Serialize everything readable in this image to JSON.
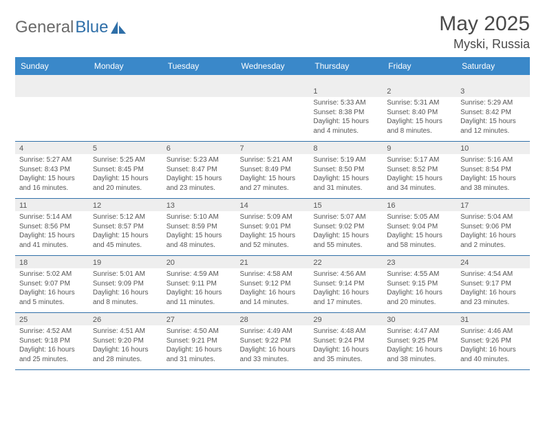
{
  "brand": {
    "part1": "General",
    "part2": "Blue"
  },
  "title": "May 2025",
  "location": "Myski, Russia",
  "colors": {
    "header_bg": "#3a88c9",
    "header_text": "#ffffff",
    "row_shade": "#eeeeee",
    "divider": "#2f6fa8",
    "body_text": "#555555"
  },
  "day_names": [
    "Sunday",
    "Monday",
    "Tuesday",
    "Wednesday",
    "Thursday",
    "Friday",
    "Saturday"
  ],
  "weeks": [
    [
      null,
      null,
      null,
      null,
      {
        "n": "1",
        "lines": [
          "Sunrise: 5:33 AM",
          "Sunset: 8:38 PM",
          "Daylight: 15 hours",
          "and 4 minutes."
        ]
      },
      {
        "n": "2",
        "lines": [
          "Sunrise: 5:31 AM",
          "Sunset: 8:40 PM",
          "Daylight: 15 hours",
          "and 8 minutes."
        ]
      },
      {
        "n": "3",
        "lines": [
          "Sunrise: 5:29 AM",
          "Sunset: 8:42 PM",
          "Daylight: 15 hours",
          "and 12 minutes."
        ]
      }
    ],
    [
      {
        "n": "4",
        "lines": [
          "Sunrise: 5:27 AM",
          "Sunset: 8:43 PM",
          "Daylight: 15 hours",
          "and 16 minutes."
        ]
      },
      {
        "n": "5",
        "lines": [
          "Sunrise: 5:25 AM",
          "Sunset: 8:45 PM",
          "Daylight: 15 hours",
          "and 20 minutes."
        ]
      },
      {
        "n": "6",
        "lines": [
          "Sunrise: 5:23 AM",
          "Sunset: 8:47 PM",
          "Daylight: 15 hours",
          "and 23 minutes."
        ]
      },
      {
        "n": "7",
        "lines": [
          "Sunrise: 5:21 AM",
          "Sunset: 8:49 PM",
          "Daylight: 15 hours",
          "and 27 minutes."
        ]
      },
      {
        "n": "8",
        "lines": [
          "Sunrise: 5:19 AM",
          "Sunset: 8:50 PM",
          "Daylight: 15 hours",
          "and 31 minutes."
        ]
      },
      {
        "n": "9",
        "lines": [
          "Sunrise: 5:17 AM",
          "Sunset: 8:52 PM",
          "Daylight: 15 hours",
          "and 34 minutes."
        ]
      },
      {
        "n": "10",
        "lines": [
          "Sunrise: 5:16 AM",
          "Sunset: 8:54 PM",
          "Daylight: 15 hours",
          "and 38 minutes."
        ]
      }
    ],
    [
      {
        "n": "11",
        "lines": [
          "Sunrise: 5:14 AM",
          "Sunset: 8:56 PM",
          "Daylight: 15 hours",
          "and 41 minutes."
        ]
      },
      {
        "n": "12",
        "lines": [
          "Sunrise: 5:12 AM",
          "Sunset: 8:57 PM",
          "Daylight: 15 hours",
          "and 45 minutes."
        ]
      },
      {
        "n": "13",
        "lines": [
          "Sunrise: 5:10 AM",
          "Sunset: 8:59 PM",
          "Daylight: 15 hours",
          "and 48 minutes."
        ]
      },
      {
        "n": "14",
        "lines": [
          "Sunrise: 5:09 AM",
          "Sunset: 9:01 PM",
          "Daylight: 15 hours",
          "and 52 minutes."
        ]
      },
      {
        "n": "15",
        "lines": [
          "Sunrise: 5:07 AM",
          "Sunset: 9:02 PM",
          "Daylight: 15 hours",
          "and 55 minutes."
        ]
      },
      {
        "n": "16",
        "lines": [
          "Sunrise: 5:05 AM",
          "Sunset: 9:04 PM",
          "Daylight: 15 hours",
          "and 58 minutes."
        ]
      },
      {
        "n": "17",
        "lines": [
          "Sunrise: 5:04 AM",
          "Sunset: 9:06 PM",
          "Daylight: 16 hours",
          "and 2 minutes."
        ]
      }
    ],
    [
      {
        "n": "18",
        "lines": [
          "Sunrise: 5:02 AM",
          "Sunset: 9:07 PM",
          "Daylight: 16 hours",
          "and 5 minutes."
        ]
      },
      {
        "n": "19",
        "lines": [
          "Sunrise: 5:01 AM",
          "Sunset: 9:09 PM",
          "Daylight: 16 hours",
          "and 8 minutes."
        ]
      },
      {
        "n": "20",
        "lines": [
          "Sunrise: 4:59 AM",
          "Sunset: 9:11 PM",
          "Daylight: 16 hours",
          "and 11 minutes."
        ]
      },
      {
        "n": "21",
        "lines": [
          "Sunrise: 4:58 AM",
          "Sunset: 9:12 PM",
          "Daylight: 16 hours",
          "and 14 minutes."
        ]
      },
      {
        "n": "22",
        "lines": [
          "Sunrise: 4:56 AM",
          "Sunset: 9:14 PM",
          "Daylight: 16 hours",
          "and 17 minutes."
        ]
      },
      {
        "n": "23",
        "lines": [
          "Sunrise: 4:55 AM",
          "Sunset: 9:15 PM",
          "Daylight: 16 hours",
          "and 20 minutes."
        ]
      },
      {
        "n": "24",
        "lines": [
          "Sunrise: 4:54 AM",
          "Sunset: 9:17 PM",
          "Daylight: 16 hours",
          "and 23 minutes."
        ]
      }
    ],
    [
      {
        "n": "25",
        "lines": [
          "Sunrise: 4:52 AM",
          "Sunset: 9:18 PM",
          "Daylight: 16 hours",
          "and 25 minutes."
        ]
      },
      {
        "n": "26",
        "lines": [
          "Sunrise: 4:51 AM",
          "Sunset: 9:20 PM",
          "Daylight: 16 hours",
          "and 28 minutes."
        ]
      },
      {
        "n": "27",
        "lines": [
          "Sunrise: 4:50 AM",
          "Sunset: 9:21 PM",
          "Daylight: 16 hours",
          "and 31 minutes."
        ]
      },
      {
        "n": "28",
        "lines": [
          "Sunrise: 4:49 AM",
          "Sunset: 9:22 PM",
          "Daylight: 16 hours",
          "and 33 minutes."
        ]
      },
      {
        "n": "29",
        "lines": [
          "Sunrise: 4:48 AM",
          "Sunset: 9:24 PM",
          "Daylight: 16 hours",
          "and 35 minutes."
        ]
      },
      {
        "n": "30",
        "lines": [
          "Sunrise: 4:47 AM",
          "Sunset: 9:25 PM",
          "Daylight: 16 hours",
          "and 38 minutes."
        ]
      },
      {
        "n": "31",
        "lines": [
          "Sunrise: 4:46 AM",
          "Sunset: 9:26 PM",
          "Daylight: 16 hours",
          "and 40 minutes."
        ]
      }
    ]
  ]
}
